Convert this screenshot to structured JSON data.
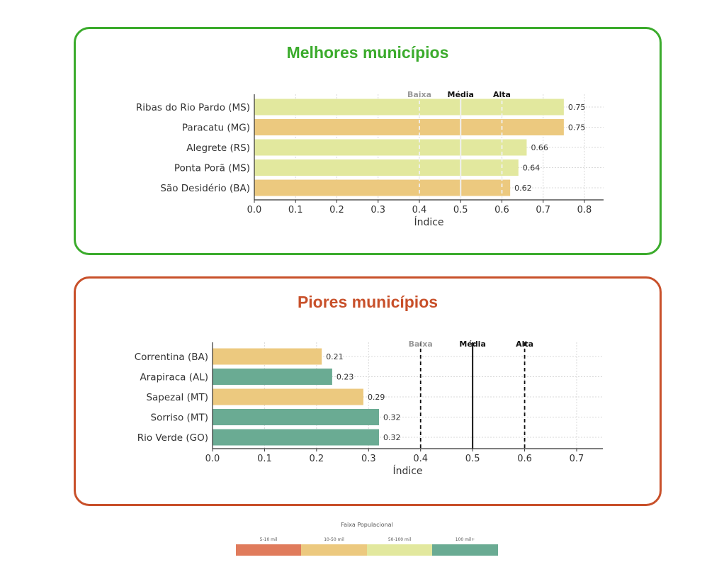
{
  "colors": {
    "5-10 mil": "#e07b5c",
    "10-50 mil": "#ecc97f",
    "50-100 mil": "#e2e89e",
    "100 mil+": "#6aab93"
  },
  "chart_data": [
    {
      "type": "bar",
      "orientation": "horizontal",
      "title": "Melhores municípios",
      "xlabel": "Índice",
      "xlim": [
        0,
        0.85
      ],
      "xticks": [
        "0.0",
        "0.1",
        "0.2",
        "0.3",
        "0.4",
        "0.5",
        "0.6",
        "0.7",
        "0.8"
      ],
      "grid": true,
      "categories": [
        "Ribas do Rio Pardo (MS)",
        "Paracatu (MG)",
        "Alegrete (RS)",
        "Ponta Porã (MS)",
        "São Desidério (BA)"
      ],
      "values": [
        0.75,
        0.75,
        0.66,
        0.64,
        0.62
      ],
      "value_labels": [
        "0.75",
        "0.75",
        "0.66",
        "0.64",
        "0.62"
      ],
      "groups": [
        "50-100 mil",
        "10-50 mil",
        "50-100 mil",
        "50-100 mil",
        "10-50 mil"
      ],
      "reference_lines": [
        {
          "label": "Baixa",
          "value": 0.4,
          "style": "dashed",
          "color": "#f0f0f0",
          "label_color": "#999999"
        },
        {
          "label": "Média",
          "value": 0.5,
          "style": "solid",
          "color": "#f0f0f0",
          "label_color": "#111111"
        },
        {
          "label": "Alta",
          "value": 0.6,
          "style": "dashed",
          "color": "#f0f0f0",
          "label_color": "#111111"
        }
      ]
    },
    {
      "type": "bar",
      "orientation": "horizontal",
      "title": "Piores municípios",
      "xlabel": "Índice",
      "xlim": [
        0,
        0.75
      ],
      "xticks": [
        "0.0",
        "0.1",
        "0.2",
        "0.3",
        "0.4",
        "0.5",
        "0.6",
        "0.7"
      ],
      "grid": true,
      "categories": [
        "Correntina (BA)",
        "Arapiraca (AL)",
        "Sapezal (MT)",
        "Sorriso (MT)",
        "Rio Verde (GO)"
      ],
      "values": [
        0.21,
        0.23,
        0.29,
        0.32,
        0.32
      ],
      "value_labels": [
        "0.21",
        "0.23",
        "0.29",
        "0.32",
        "0.32"
      ],
      "groups": [
        "10-50 mil",
        "100 mil+",
        "10-50 mil",
        "100 mil+",
        "100 mil+"
      ],
      "reference_lines": [
        {
          "label": "Baixa",
          "value": 0.4,
          "style": "dashed",
          "color": "#111111",
          "label_color": "#999999"
        },
        {
          "label": "Média",
          "value": 0.5,
          "style": "solid",
          "color": "#111111",
          "label_color": "#111111"
        },
        {
          "label": "Alta",
          "value": 0.6,
          "style": "dashed",
          "color": "#111111",
          "label_color": "#111111"
        }
      ]
    }
  ],
  "legend": {
    "title": "Faixa Populacional",
    "items": [
      "5-10 mil",
      "10-50 mil",
      "50-100 mil",
      "100 mil+"
    ]
  }
}
